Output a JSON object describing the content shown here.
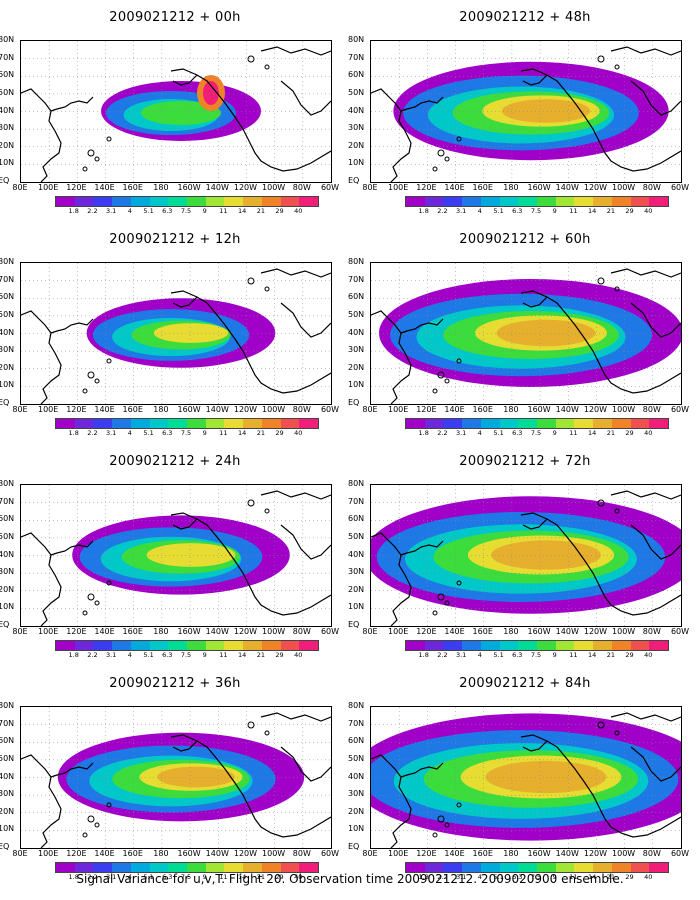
{
  "panels": [
    {
      "title": "2009021212 + 00h",
      "level": 0
    },
    {
      "title": "2009021212 + 48h",
      "level": 4
    },
    {
      "title": "2009021212 + 12h",
      "level": 1
    },
    {
      "title": "2009021212 + 60h",
      "level": 5
    },
    {
      "title": "2009021212 + 24h",
      "level": 2
    },
    {
      "title": "2009021212 + 72h",
      "level": 6
    },
    {
      "title": "2009021212 + 36h",
      "level": 3
    },
    {
      "title": "2009021212 + 84h",
      "level": 7
    }
  ],
  "lat_labels": [
    "80N",
    "70N",
    "60N",
    "50N",
    "40N",
    "30N",
    "20N",
    "10N",
    "EQ"
  ],
  "lon_labels": [
    "80E",
    "100E",
    "120E",
    "140E",
    "160E",
    "180",
    "160W",
    "140W",
    "120W",
    "100W",
    "80W",
    "60W"
  ],
  "legend": {
    "labels": [
      "1.8",
      "2.2",
      "3.1",
      "4",
      "5.1",
      "6.3",
      "7.5",
      "9",
      "11",
      "14",
      "21",
      "29",
      "40"
    ],
    "colors": [
      "#a000c8",
      "#6e28dc",
      "#3c3cf0",
      "#1e78e6",
      "#00aadc",
      "#00c8c8",
      "#00dc96",
      "#3cdc3c",
      "#a0e632",
      "#e6dc32",
      "#e6af2d",
      "#f08228",
      "#f05050",
      "#f01e78"
    ]
  },
  "footer": "Signal Variance for u,v,T. Flight 20. Observation time 2009021212. 2009020900 ensemble."
}
